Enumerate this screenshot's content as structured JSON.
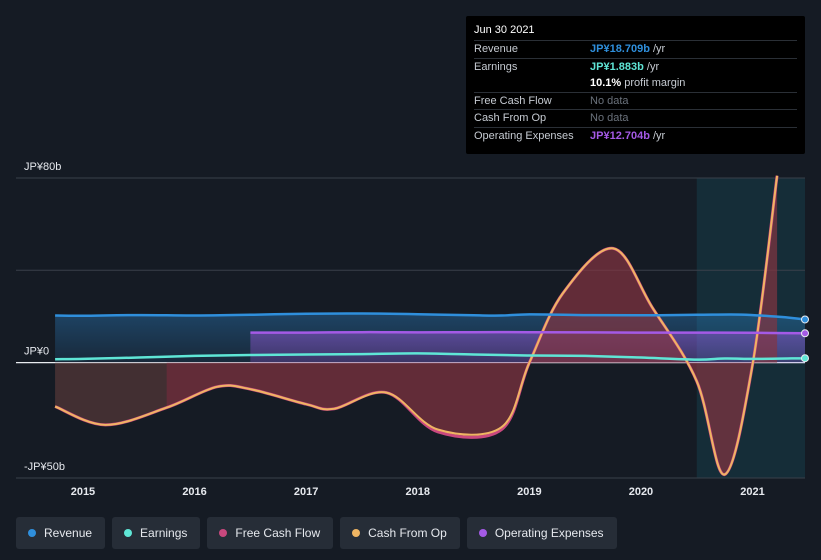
{
  "chart_data": {
    "type": "area",
    "ylim": [
      -50,
      80
    ],
    "y_ticks": [
      {
        "value": 80,
        "label": "JP¥80b"
      },
      {
        "value": 0,
        "label": "JP¥0"
      },
      {
        "value": -50,
        "label": "-JP¥50b"
      }
    ],
    "x_ticks": [
      {
        "value": 2015,
        "label": "2015"
      },
      {
        "value": 2016,
        "label": "2016"
      },
      {
        "value": 2017,
        "label": "2017"
      },
      {
        "value": 2018,
        "label": "2018"
      },
      {
        "value": 2019,
        "label": "2019"
      },
      {
        "value": 2020,
        "label": "2020"
      },
      {
        "value": 2021,
        "label": "2021"
      }
    ],
    "xlim": [
      2014.4,
      2021.47
    ],
    "highlight_range": [
      2020.5,
      2021.47
    ],
    "series": [
      {
        "name": "Revenue",
        "color": "#2f8fdc",
        "points": [
          [
            2014.75,
            20.4
          ],
          [
            2015,
            20.3
          ],
          [
            2015.5,
            20.6
          ],
          [
            2016,
            20.4
          ],
          [
            2016.5,
            20.7
          ],
          [
            2017,
            21.2
          ],
          [
            2017.5,
            21.3
          ],
          [
            2018,
            21.0
          ],
          [
            2018.5,
            20.5
          ],
          [
            2018.75,
            20.4
          ],
          [
            2019,
            20.9
          ],
          [
            2019.5,
            20.6
          ],
          [
            2020,
            20.5
          ],
          [
            2020.5,
            20.7
          ],
          [
            2020.9,
            20.8
          ],
          [
            2021.25,
            19.8
          ],
          [
            2021.47,
            18.7
          ]
        ]
      },
      {
        "name": "Earnings",
        "color": "#5fe6d6",
        "points": [
          [
            2014.75,
            1.5
          ],
          [
            2015,
            1.6
          ],
          [
            2015.5,
            2.2
          ],
          [
            2016,
            2.9
          ],
          [
            2016.5,
            3.3
          ],
          [
            2017,
            3.5
          ],
          [
            2017.5,
            3.7
          ],
          [
            2018,
            4.0
          ],
          [
            2018.5,
            3.5
          ],
          [
            2019,
            3.1
          ],
          [
            2019.5,
            2.9
          ],
          [
            2020,
            2.2
          ],
          [
            2020.5,
            1.3
          ],
          [
            2020.75,
            1.8
          ],
          [
            2021,
            1.6
          ],
          [
            2021.47,
            1.9
          ]
        ]
      },
      {
        "name": "Operating Expenses",
        "color": "#a45ae6",
        "points": [
          [
            2016.5,
            13.0
          ],
          [
            2017,
            13.0
          ],
          [
            2017.5,
            13.2
          ],
          [
            2018,
            13.1
          ],
          [
            2018.5,
            13.2
          ],
          [
            2019,
            13.2
          ],
          [
            2019.5,
            13.1
          ],
          [
            2020,
            13.0
          ],
          [
            2020.5,
            13.0
          ],
          [
            2021,
            12.9
          ],
          [
            2021.47,
            12.7
          ]
        ]
      },
      {
        "name": "Free Cash Flow",
        "color": "#c9487e",
        "points": [
          [
            2014.75,
            -19
          ],
          [
            2015.2,
            -27
          ],
          [
            2015.75,
            -19.5
          ],
          [
            2016.2,
            -10.5
          ],
          [
            2016.5,
            -11.5
          ],
          [
            2017,
            -18
          ],
          [
            2017.25,
            -20
          ],
          [
            2017.72,
            -13
          ],
          [
            2018.18,
            -30
          ],
          [
            2018.75,
            -29
          ],
          [
            2019,
            0
          ],
          [
            2019.3,
            30
          ],
          [
            2019.75,
            49.5
          ],
          [
            2020.1,
            24
          ],
          [
            2020.5,
            -8
          ],
          [
            2020.75,
            -48.5
          ],
          [
            2021,
            -1
          ],
          [
            2021.22,
            81
          ]
        ]
      },
      {
        "name": "Cash From Op",
        "color": "#efb563",
        "points": [
          [
            2014.75,
            -19
          ],
          [
            2015.2,
            -27
          ],
          [
            2015.75,
            -19.5
          ],
          [
            2016.2,
            -10.5
          ],
          [
            2016.5,
            -11.5
          ],
          [
            2017,
            -18
          ],
          [
            2017.25,
            -20
          ],
          [
            2017.72,
            -13
          ],
          [
            2018.18,
            -29
          ],
          [
            2018.75,
            -28
          ],
          [
            2019,
            0
          ],
          [
            2019.3,
            30
          ],
          [
            2019.75,
            49.5
          ],
          [
            2020.1,
            24
          ],
          [
            2020.5,
            -8
          ],
          [
            2020.75,
            -48.5
          ],
          [
            2021,
            -1
          ],
          [
            2021.22,
            81
          ]
        ]
      }
    ],
    "fcf_fill_start": 2015.75,
    "tooltip": {
      "date": "Jun 30 2021",
      "rows": [
        {
          "label": "Revenue",
          "value": "JP¥18.709b",
          "suffix": "/yr",
          "color": "#2f8fdc"
        },
        {
          "label": "Earnings",
          "value": "JP¥1.883b",
          "suffix": "/yr",
          "color": "#5fe6d6"
        },
        {
          "label": "",
          "value": "10.1%",
          "suffix": "profit margin",
          "color": "#ffffff"
        },
        {
          "label": "Free Cash Flow",
          "value": "No data",
          "suffix": "",
          "color": "#6b727c"
        },
        {
          "label": "Cash From Op",
          "value": "No data",
          "suffix": "",
          "color": "#6b727c"
        },
        {
          "label": "Operating Expenses",
          "value": "JP¥12.704b",
          "suffix": "/yr",
          "color": "#a45ae6"
        }
      ]
    }
  },
  "legend": [
    {
      "label": "Revenue",
      "color": "#2f8fdc"
    },
    {
      "label": "Earnings",
      "color": "#5fe6d6"
    },
    {
      "label": "Free Cash Flow",
      "color": "#c9487e"
    },
    {
      "label": "Cash From Op",
      "color": "#efb563"
    },
    {
      "label": "Operating Expenses",
      "color": "#a45ae6"
    }
  ]
}
